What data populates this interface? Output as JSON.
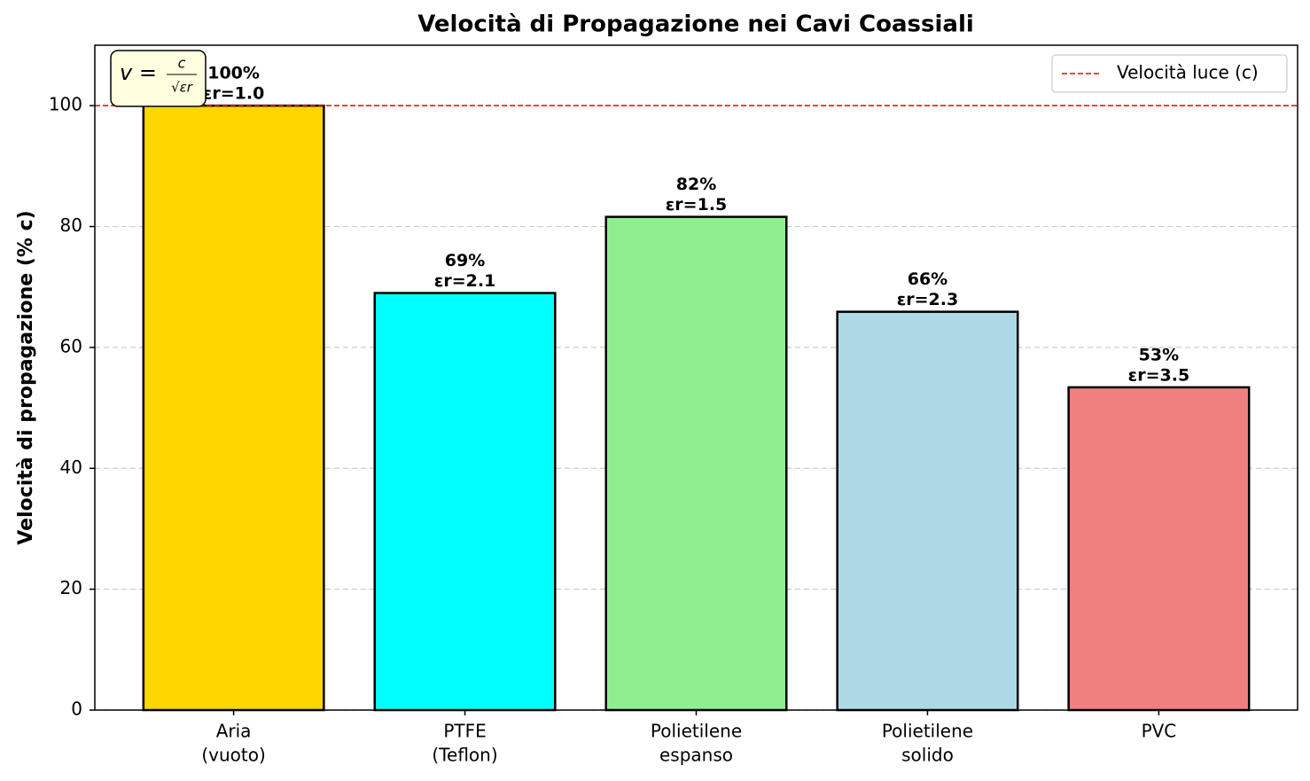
{
  "chart_data": {
    "type": "bar",
    "title": "Velocità di Propagazione nei Cavi Coassiali",
    "y_label": "Velocità di propagazione (% c)",
    "categories": [
      [
        "Aria",
        "(vuoto)"
      ],
      [
        "PTFE",
        "(Teflon)"
      ],
      [
        "Polietilene",
        "espanso"
      ],
      [
        "Polietilene",
        "solido"
      ],
      [
        "PVC"
      ]
    ],
    "values": [
      100,
      69.0,
      81.6,
      65.9,
      53.4
    ],
    "value_labels": [
      "100%",
      "69%",
      "82%",
      "66%",
      "53%"
    ],
    "permittivity_labels": [
      "εr=1.0",
      "εr=2.1",
      "εr=1.5",
      "εr=2.3",
      "εr=3.5"
    ],
    "colors": [
      "#ffd700",
      "#00ffff",
      "#90ee90",
      "#add8e6",
      "#f08080"
    ],
    "ylim": [
      0,
      110
    ],
    "yticks": [
      0,
      20,
      40,
      60,
      80,
      100
    ],
    "grid": true,
    "reference_line": {
      "value": 100,
      "label": "Velocità luce (c)",
      "color": "#ff0000"
    },
    "legend_position": "upper right",
    "formula": {
      "lhs": "v =",
      "numerator": "c",
      "denominator": "√εr"
    }
  }
}
